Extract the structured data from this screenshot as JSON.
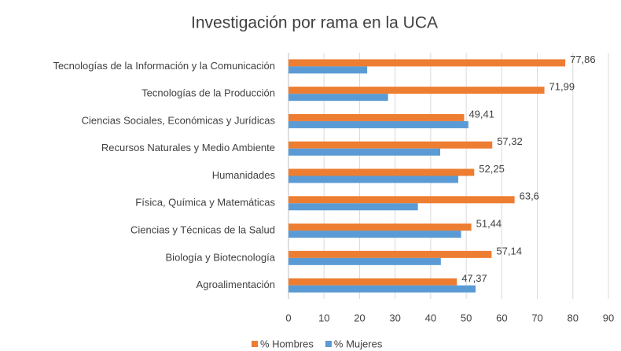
{
  "chart_data": {
    "type": "hbar",
    "title": "Investigación por rama en la UCA",
    "categories": [
      "Tecnologías de la Información y la Comunicación",
      "Tecnologías de la Producción",
      "Ciencias Sociales, Económicas y Jurídicas",
      "Recursos Naturales y Medio Ambiente",
      "Humanidades",
      "Física, Química y Matemáticas",
      "Ciencias y Técnicas de la Salud",
      "Biología y Biotecnología",
      "Agroalimentación"
    ],
    "series": [
      {
        "name": "% Hombres",
        "color": "#ed7d31",
        "values": [
          77.86,
          71.99,
          49.41,
          57.32,
          52.25,
          63.6,
          51.44,
          57.14,
          47.37
        ],
        "value_labels": [
          "77,86",
          "71,99",
          "49,41",
          "57,32",
          "52,25",
          "63,6",
          "51,44",
          "57,14",
          "47,37"
        ]
      },
      {
        "name": "% Mujeres",
        "color": "#5b9bd5",
        "values": [
          22.14,
          28.01,
          50.59,
          42.68,
          47.75,
          36.4,
          48.56,
          42.86,
          52.63
        ]
      }
    ],
    "xlim": [
      0,
      90
    ],
    "xticks": [
      0,
      10,
      20,
      30,
      40,
      50,
      60,
      70,
      80,
      90
    ],
    "grid": true,
    "legend": "bottom"
  }
}
